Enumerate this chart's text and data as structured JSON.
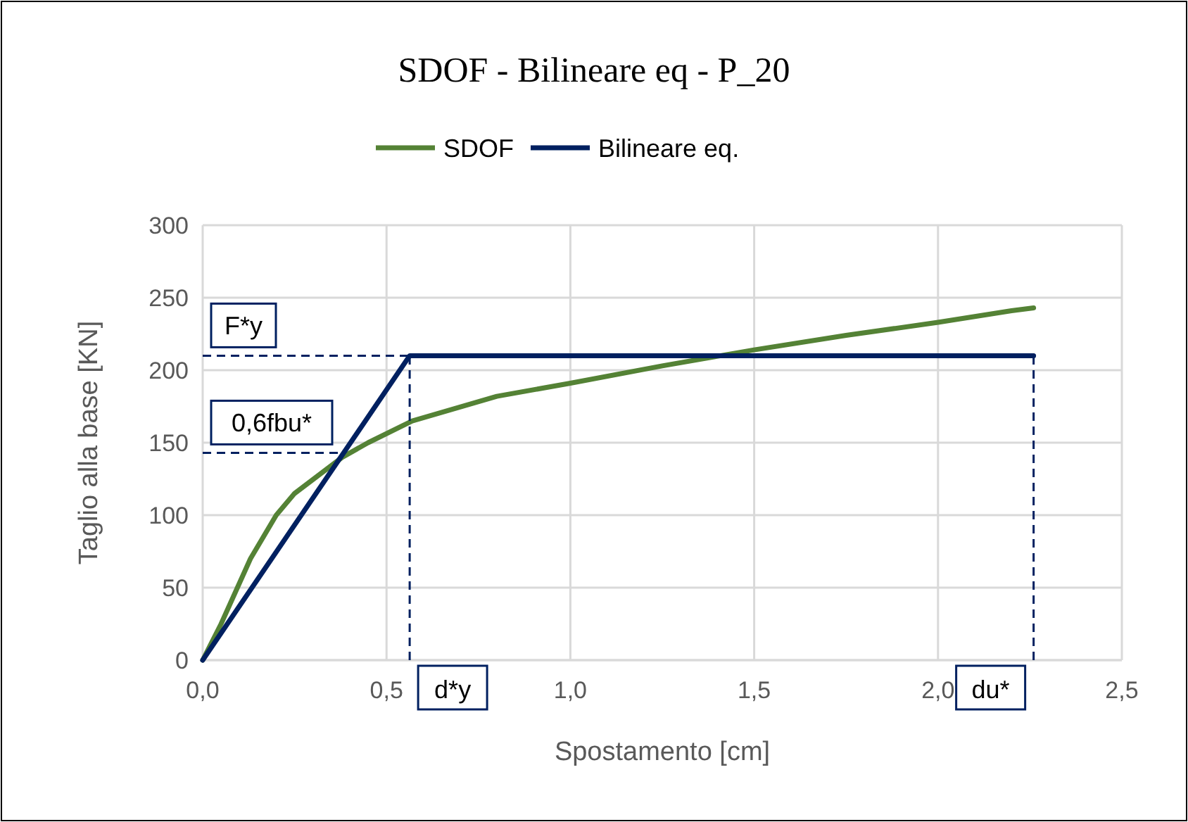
{
  "chart_data": {
    "type": "line",
    "title": "SDOF - Bilineare eq - P_20",
    "xlabel": "Spostamento [cm]",
    "ylabel": "Taglio alla base [KN]",
    "series": [
      {
        "name": "SDOF",
        "color": "#548235",
        "x": [
          0,
          0.05,
          0.13,
          0.2,
          0.25,
          0.38,
          0.45,
          0.57,
          0.8,
          1.0,
          1.25,
          1.5,
          1.75,
          2.0,
          2.2,
          2.26
        ],
        "values": [
          0,
          25,
          70,
          100,
          115,
          140,
          150,
          165,
          182,
          191,
          203,
          214,
          224,
          233,
          241,
          243
        ]
      },
      {
        "name": "Bilineare eq.",
        "color": "#002060",
        "x": [
          0,
          0.563,
          2.26
        ],
        "values": [
          0,
          210,
          210
        ]
      }
    ],
    "xlim": [
      0,
      2.5
    ],
    "xticks": [
      {
        "value": 0,
        "label": "0,0"
      },
      {
        "value": 0.5,
        "label": "0,5"
      },
      {
        "value": 1,
        "label": "1,0"
      },
      {
        "value": 1.5,
        "label": "1,5"
      },
      {
        "value": 2,
        "label": "2,0"
      },
      {
        "value": 2.5,
        "label": "2,5"
      }
    ],
    "ylim": [
      0,
      300
    ],
    "yticks": [
      0,
      50,
      100,
      150,
      200,
      250,
      300
    ],
    "ref_lines": [
      {
        "axis": "y",
        "value": 210,
        "label": "F*y",
        "color": "#002060",
        "line_style": "dashed"
      },
      {
        "axis": "y",
        "value": 143,
        "label": "0,6fbu*",
        "color": "#002060",
        "line_style": "dashed"
      },
      {
        "axis": "x",
        "value": 0.563,
        "label": "d*y",
        "color": "#002060",
        "line_style": "dashed"
      },
      {
        "axis": "x",
        "value": 2.26,
        "label": "du*",
        "color": "#002060",
        "line_style": "dashed"
      }
    ],
    "grid": true,
    "legend": "top",
    "marker": "none",
    "line_style": "solid"
  }
}
